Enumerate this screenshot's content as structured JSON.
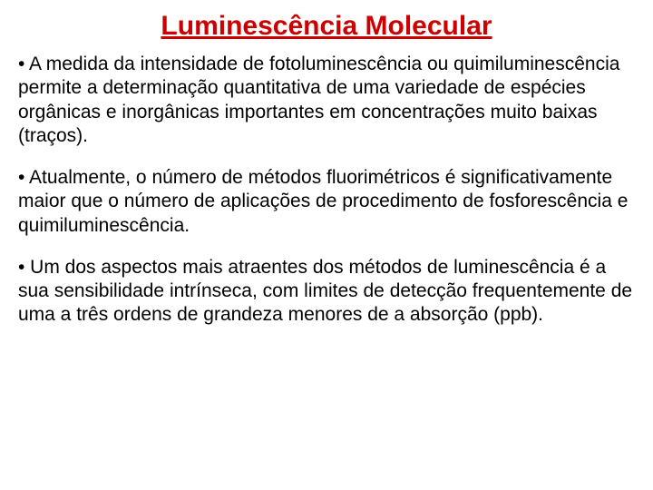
{
  "document": {
    "title": "Luminescência Molecular",
    "title_color": "#cc0000",
    "title_fontsize": 30,
    "title_font_weight": "bold",
    "title_underline": true,
    "body_color": "#000000",
    "body_fontsize": 21,
    "background_color": "#ffffff",
    "font_family": "Comic Sans MS",
    "paragraphs": [
      "• A medida da intensidade de fotoluminescência ou quimiluminescência permite a determinação quantitativa de uma variedade de espécies orgânicas e inorgânicas importantes em concentrações muito baixas (traços).",
      "• Atualmente, o número de métodos fluorimétricos é significativamente maior que o número de aplicações de procedimento de fosforescência e quimiluminescência.",
      "• Um dos aspectos mais atraentes dos métodos de luminescência é a sua sensibilidade intrínseca, com limites de detecção frequentemente de uma a três ordens de grandeza menores de a absorção (ppb)."
    ]
  }
}
